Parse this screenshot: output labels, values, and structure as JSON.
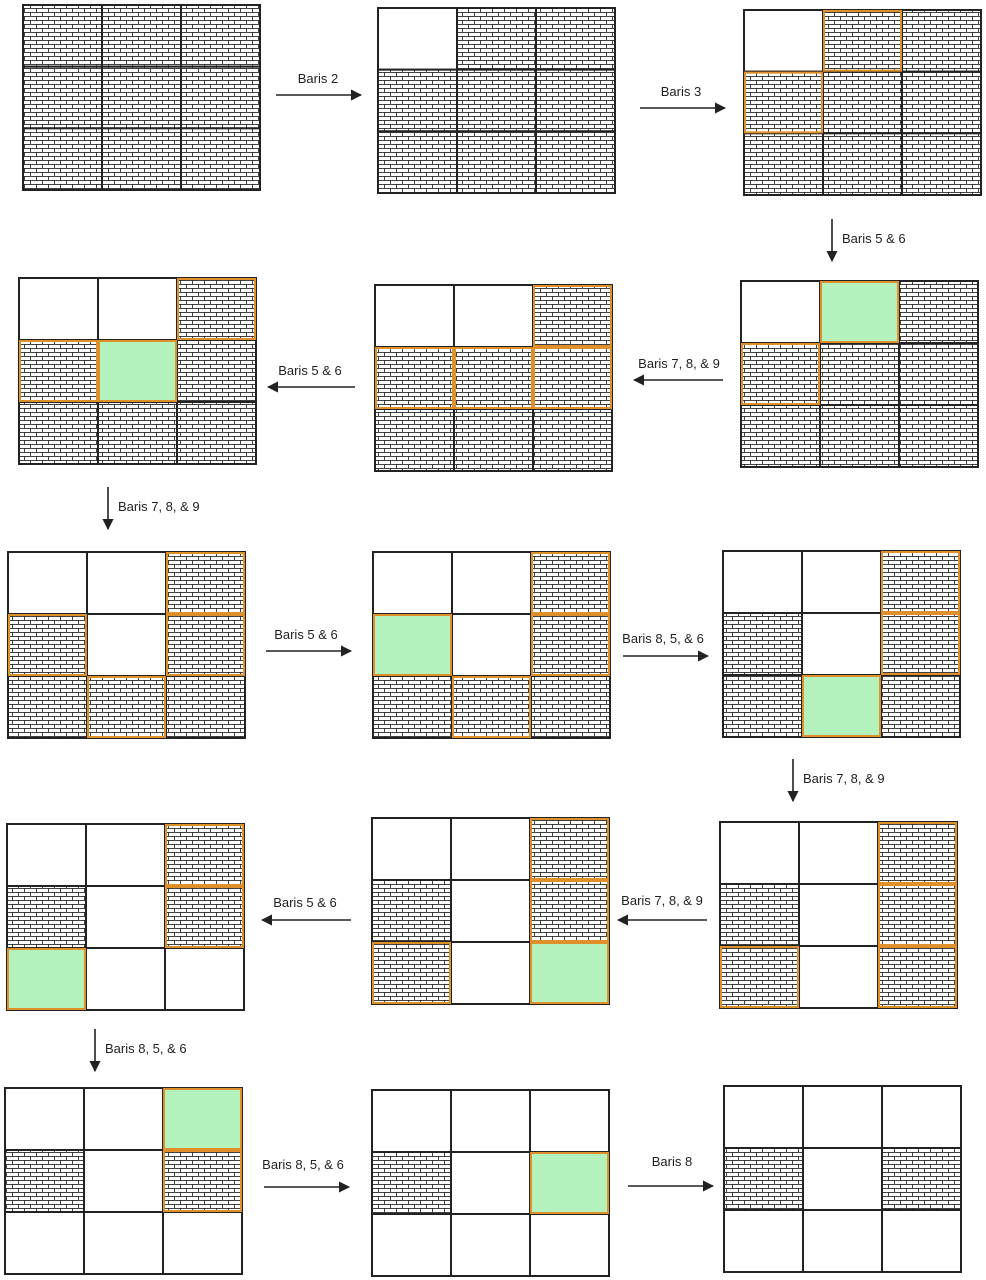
{
  "colors": {
    "border": "#222222",
    "highlight_border": "#e0902a",
    "green_fill": "#b3f2bd",
    "brick_fill": "#ffffff",
    "brick_line": "#2a2a2a",
    "arrow": "#222222",
    "text": "#1f1f1f"
  },
  "legend_codes": {
    "B": "brick-cell",
    "W": "empty-cell",
    "G": "green-cell",
    "o": "orange-border"
  },
  "grids": [
    {
      "id": 1,
      "cells": [
        "B",
        "B",
        "B",
        "B",
        "B",
        "B",
        "B",
        "B",
        "B"
      ]
    },
    {
      "id": 2,
      "cells": [
        "W",
        "B",
        "B",
        "B",
        "B",
        "B",
        "B",
        "B",
        "B"
      ]
    },
    {
      "id": 3,
      "cells": [
        "W",
        "Bo",
        "B",
        "Bo",
        "B",
        "B",
        "B",
        "B",
        "B"
      ]
    },
    {
      "id": 4,
      "cells": [
        "W",
        "G",
        "B",
        "Bo",
        "B",
        "B",
        "B",
        "B",
        "B"
      ]
    },
    {
      "id": 5,
      "cells": [
        "W",
        "W",
        "Bo",
        "Bo",
        "Bo",
        "Bo",
        "B",
        "B",
        "B"
      ]
    },
    {
      "id": 6,
      "cells": [
        "W",
        "W",
        "Bo",
        "Bo",
        "G",
        "B",
        "B",
        "B",
        "B"
      ]
    },
    {
      "id": 7,
      "cells": [
        "W",
        "W",
        "Bo",
        "Bo",
        "W",
        "Bo",
        "B",
        "Bo",
        "B"
      ]
    },
    {
      "id": 8,
      "cells": [
        "W",
        "W",
        "Bo",
        "G",
        "W",
        "Bo",
        "B",
        "Bo",
        "B"
      ]
    },
    {
      "id": 9,
      "cells": [
        "W",
        "W",
        "Bo",
        "B",
        "W",
        "Bo",
        "B",
        "G",
        "B"
      ]
    },
    {
      "id": 10,
      "cells": [
        "W",
        "W",
        "Bo",
        "B",
        "W",
        "Bo",
        "Bo",
        "W",
        "Bo"
      ]
    },
    {
      "id": 11,
      "cells": [
        "W",
        "W",
        "Bo",
        "B",
        "W",
        "Bo",
        "Bo",
        "W",
        "G"
      ]
    },
    {
      "id": 12,
      "cells": [
        "W",
        "W",
        "Bo",
        "B",
        "W",
        "Bo",
        "G",
        "W",
        "W"
      ]
    },
    {
      "id": 13,
      "cells": [
        "W",
        "W",
        "G",
        "B",
        "W",
        "Bo",
        "W",
        "W",
        "W"
      ]
    },
    {
      "id": 14,
      "cells": [
        "W",
        "W",
        "W",
        "B",
        "W",
        "G",
        "W",
        "W",
        "W"
      ]
    },
    {
      "id": 15,
      "cells": [
        "W",
        "W",
        "W",
        "B",
        "W",
        "B",
        "W",
        "W",
        "W"
      ]
    }
  ],
  "edges": [
    {
      "from": 1,
      "to": 2,
      "label": "Baris 2"
    },
    {
      "from": 2,
      "to": 3,
      "label": "Baris 3"
    },
    {
      "from": 3,
      "to": 4,
      "label": "Baris 5 & 6"
    },
    {
      "from": 4,
      "to": 5,
      "label": "Baris 7, 8, & 9"
    },
    {
      "from": 5,
      "to": 6,
      "label": "Baris 5 & 6"
    },
    {
      "from": 6,
      "to": 7,
      "label": "Baris 7, 8, & 9"
    },
    {
      "from": 7,
      "to": 8,
      "label": "Baris 5 & 6"
    },
    {
      "from": 8,
      "to": 9,
      "label": "Baris 8, 5, & 6"
    },
    {
      "from": 9,
      "to": 10,
      "label": "Baris 7, 8, & 9"
    },
    {
      "from": 10,
      "to": 11,
      "label": "Baris 7, 8, & 9"
    },
    {
      "from": 11,
      "to": 12,
      "label": "Baris 5 & 6"
    },
    {
      "from": 12,
      "to": 13,
      "label": "Baris 8, 5, & 6"
    },
    {
      "from": 13,
      "to": 14,
      "label": "Baris 8, 5, & 6"
    },
    {
      "from": 14,
      "to": 15,
      "label": "Baris 8"
    }
  ]
}
